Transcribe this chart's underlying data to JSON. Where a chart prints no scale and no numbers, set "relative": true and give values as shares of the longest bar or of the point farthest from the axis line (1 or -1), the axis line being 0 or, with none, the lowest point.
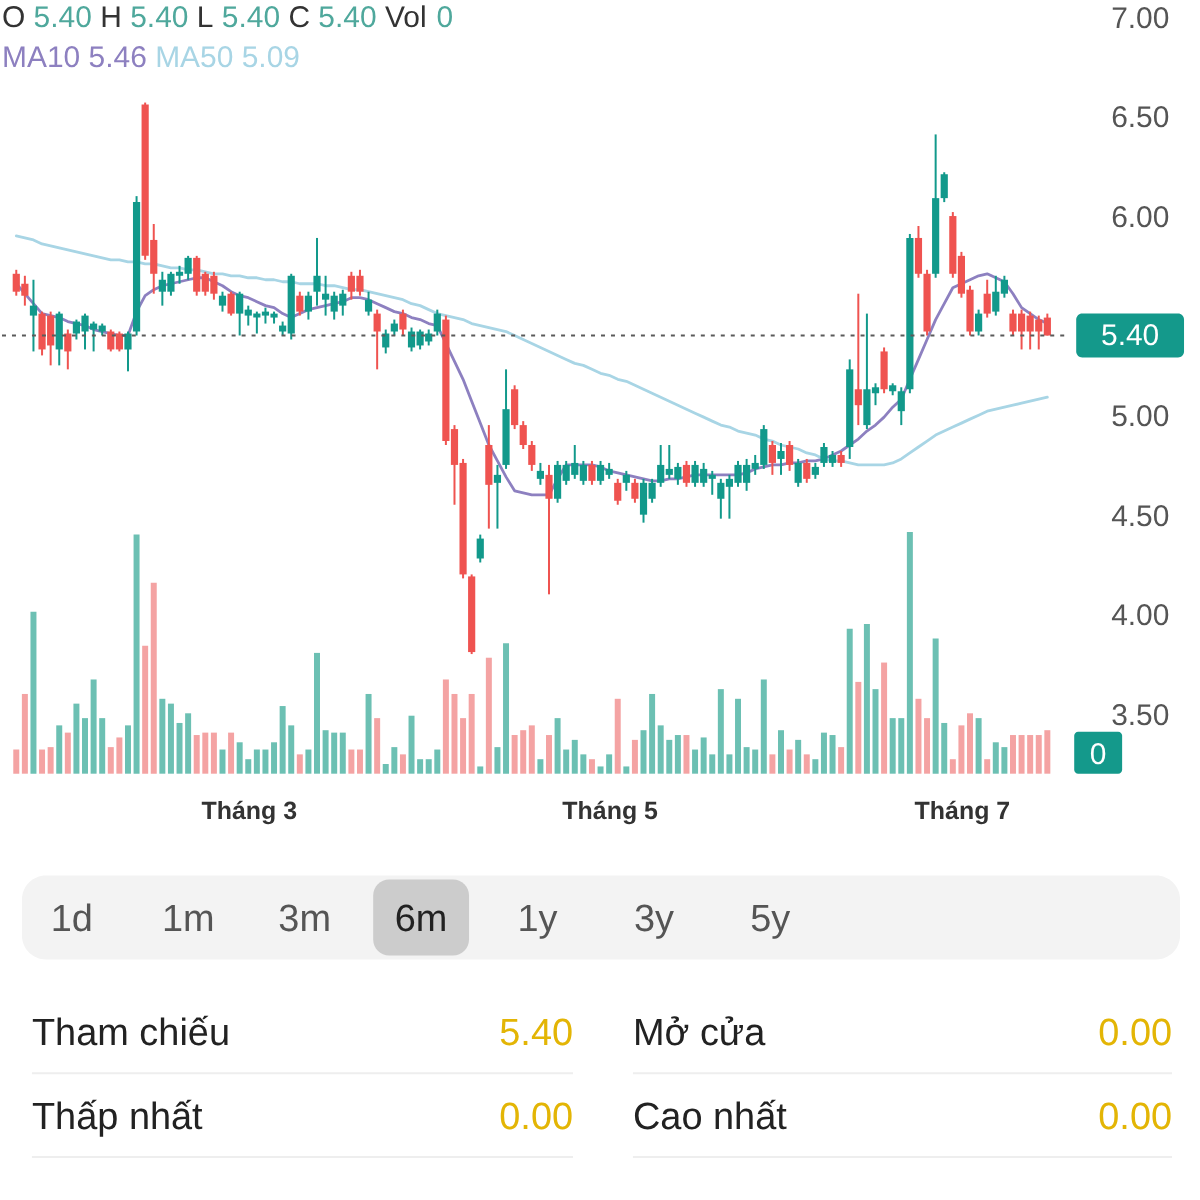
{
  "chart_data": [
    {
      "type": "candlestick",
      "tick_labels": "y",
      "categories": [
        null,
        null,
        null,
        null,
        null,
        null,
        null,
        null,
        null,
        null,
        null,
        null,
        null,
        null,
        null,
        null,
        null,
        null,
        null,
        null,
        null,
        null,
        null,
        null,
        null,
        null,
        null,
        null,
        null,
        null,
        null,
        null,
        null,
        null,
        null,
        null,
        null,
        null,
        null,
        null,
        null,
        null,
        null,
        null,
        null,
        null,
        null,
        null,
        null,
        null,
        null,
        null,
        null,
        null,
        null,
        null,
        null,
        null,
        null,
        null,
        null,
        null,
        null,
        null,
        null,
        null,
        null,
        null,
        null,
        null,
        null,
        null,
        null,
        null,
        null,
        null,
        null,
        null,
        null,
        null,
        null,
        null,
        null,
        null,
        null,
        null,
        null,
        null,
        null,
        null,
        null,
        null,
        null,
        null,
        null,
        null,
        null,
        null,
        null,
        null,
        null,
        null,
        null,
        null,
        null,
        null,
        null,
        null,
        null,
        null,
        null,
        null,
        null,
        null,
        null,
        null,
        null,
        null,
        null,
        null,
        null
      ],
      "ohlc": [
        [
          5.71,
          5.73,
          5.6,
          5.62
        ],
        [
          5.66,
          5.7,
          5.55,
          5.6
        ],
        [
          5.5,
          5.68,
          5.32,
          5.55
        ],
        [
          5.51,
          5.52,
          5.3,
          5.33
        ],
        [
          5.5,
          5.52,
          5.25,
          5.35
        ],
        [
          5.33,
          5.52,
          5.25,
          5.51
        ],
        [
          5.41,
          5.43,
          5.23,
          5.32
        ],
        [
          5.41,
          5.48,
          5.38,
          5.47
        ],
        [
          5.42,
          5.51,
          5.33,
          5.5
        ],
        [
          5.43,
          5.47,
          5.32,
          5.46
        ],
        [
          5.42,
          5.46,
          5.4,
          5.45
        ],
        [
          5.42,
          5.43,
          5.32,
          5.33
        ],
        [
          5.41,
          5.42,
          5.32,
          5.33
        ],
        [
          5.33,
          5.42,
          5.22,
          5.41
        ],
        [
          5.42,
          6.1,
          5.4,
          6.07
        ],
        [
          6.56,
          6.57,
          5.78,
          5.8
        ],
        [
          5.88,
          5.96,
          5.61,
          5.71
        ],
        [
          5.62,
          5.72,
          5.55,
          5.68
        ],
        [
          5.62,
          5.72,
          5.6,
          5.71
        ],
        [
          5.7,
          5.75,
          5.66,
          5.72
        ],
        [
          5.71,
          5.8,
          5.68,
          5.79
        ],
        [
          5.79,
          5.8,
          5.6,
          5.62
        ],
        [
          5.71,
          5.72,
          5.6,
          5.62
        ],
        [
          5.7,
          5.72,
          5.58,
          5.61
        ],
        [
          5.55,
          5.62,
          5.52,
          5.6
        ],
        [
          5.61,
          5.62,
          5.5,
          5.51
        ],
        [
          5.51,
          5.62,
          5.4,
          5.61
        ],
        [
          5.5,
          5.55,
          5.45,
          5.53
        ],
        [
          5.49,
          5.52,
          5.41,
          5.51
        ],
        [
          5.5,
          5.54,
          5.46,
          5.52
        ],
        [
          5.49,
          5.52,
          5.46,
          5.51
        ],
        [
          5.42,
          5.47,
          5.4,
          5.45
        ],
        [
          5.41,
          5.71,
          5.38,
          5.7
        ],
        [
          5.6,
          5.62,
          5.5,
          5.52
        ],
        [
          5.52,
          5.62,
          5.48,
          5.6
        ],
        [
          5.62,
          5.89,
          5.55,
          5.7
        ],
        [
          5.58,
          5.7,
          5.5,
          5.61
        ],
        [
          5.52,
          5.62,
          5.48,
          5.6
        ],
        [
          5.55,
          5.63,
          5.5,
          5.61
        ],
        [
          5.7,
          5.72,
          5.58,
          5.62
        ],
        [
          5.7,
          5.73,
          5.6,
          5.62
        ],
        [
          5.52,
          5.62,
          5.5,
          5.58
        ],
        [
          5.51,
          5.53,
          5.23,
          5.42
        ],
        [
          5.34,
          5.43,
          5.31,
          5.41
        ],
        [
          5.42,
          5.48,
          5.4,
          5.46
        ],
        [
          5.51,
          5.53,
          5.4,
          5.43
        ],
        [
          5.34,
          5.44,
          5.32,
          5.42
        ],
        [
          5.35,
          5.43,
          5.33,
          5.42
        ],
        [
          5.37,
          5.43,
          5.35,
          5.41
        ],
        [
          5.42,
          5.53,
          5.4,
          5.51
        ],
        [
          5.48,
          5.5,
          4.85,
          4.87
        ],
        [
          4.93,
          4.95,
          4.55,
          4.75
        ],
        [
          4.76,
          4.78,
          4.18,
          4.2
        ],
        [
          4.19,
          4.2,
          3.8,
          3.81
        ],
        [
          4.28,
          4.4,
          4.26,
          4.38
        ],
        [
          4.85,
          4.95,
          4.43,
          4.65
        ],
        [
          4.66,
          4.75,
          4.43,
          4.7
        ],
        [
          4.75,
          5.23,
          4.73,
          5.03
        ],
        [
          5.13,
          5.15,
          4.93,
          4.95
        ],
        [
          4.95,
          4.97,
          4.83,
          4.85
        ],
        [
          4.85,
          4.87,
          4.72,
          4.75
        ],
        [
          4.68,
          4.76,
          4.65,
          4.72
        ],
        [
          4.7,
          4.75,
          4.1,
          4.58
        ],
        [
          4.58,
          4.77,
          4.56,
          4.75
        ],
        [
          4.67,
          4.77,
          4.65,
          4.75
        ],
        [
          4.7,
          4.85,
          4.68,
          4.76
        ],
        [
          4.67,
          4.77,
          4.65,
          4.75
        ],
        [
          4.75,
          4.77,
          4.65,
          4.67
        ],
        [
          4.67,
          4.77,
          4.65,
          4.75
        ],
        [
          4.7,
          4.76,
          4.68,
          4.73
        ],
        [
          4.66,
          4.68,
          4.55,
          4.57
        ],
        [
          4.66,
          4.72,
          4.62,
          4.7
        ],
        [
          4.66,
          4.68,
          4.56,
          4.58
        ],
        [
          4.5,
          4.68,
          4.46,
          4.66
        ],
        [
          4.58,
          4.68,
          4.56,
          4.66
        ],
        [
          4.66,
          4.85,
          4.64,
          4.75
        ],
        [
          4.7,
          4.85,
          4.68,
          4.73
        ],
        [
          4.68,
          4.76,
          4.65,
          4.74
        ],
        [
          4.75,
          4.77,
          4.64,
          4.66
        ],
        [
          4.66,
          4.77,
          4.64,
          4.75
        ],
        [
          4.66,
          4.76,
          4.64,
          4.73
        ],
        [
          4.68,
          4.72,
          4.6,
          4.7
        ],
        [
          4.58,
          4.68,
          4.48,
          4.66
        ],
        [
          4.64,
          4.7,
          4.48,
          4.68
        ],
        [
          4.66,
          4.77,
          4.64,
          4.75
        ],
        [
          4.66,
          4.78,
          4.62,
          4.75
        ],
        [
          4.73,
          4.8,
          4.7,
          4.76
        ],
        [
          4.75,
          4.95,
          4.73,
          4.93
        ],
        [
          4.85,
          4.87,
          4.7,
          4.76
        ],
        [
          4.78,
          4.86,
          4.7,
          4.82
        ],
        [
          4.85,
          4.87,
          4.72,
          4.75
        ],
        [
          4.66,
          4.78,
          4.64,
          4.76
        ],
        [
          4.76,
          4.78,
          4.66,
          4.68
        ],
        [
          4.7,
          4.76,
          4.68,
          4.74
        ],
        [
          4.76,
          4.86,
          4.74,
          4.84
        ],
        [
          4.76,
          4.82,
          4.74,
          4.8
        ],
        [
          4.8,
          4.82,
          4.74,
          4.76
        ],
        [
          4.84,
          5.28,
          4.78,
          5.23
        ],
        [
          5.13,
          5.61,
          4.95,
          5.05
        ],
        [
          4.95,
          5.51,
          4.93,
          5.13
        ],
        [
          5.11,
          5.16,
          5.05,
          5.14
        ],
        [
          5.32,
          5.34,
          5.11,
          5.13
        ],
        [
          5.12,
          5.16,
          5.1,
          5.15
        ],
        [
          5.02,
          5.14,
          4.95,
          5.12
        ],
        [
          5.13,
          5.91,
          5.11,
          5.89
        ],
        [
          5.89,
          5.95,
          5.69,
          5.71
        ],
        [
          5.71,
          5.73,
          5.4,
          5.42
        ],
        [
          5.71,
          6.41,
          5.69,
          6.09
        ],
        [
          6.09,
          6.22,
          6.07,
          6.21
        ],
        [
          6.0,
          6.02,
          5.69,
          5.71
        ],
        [
          5.8,
          5.82,
          5.59,
          5.61
        ],
        [
          5.63,
          5.65,
          5.4,
          5.42
        ],
        [
          5.42,
          5.53,
          5.4,
          5.51
        ],
        [
          5.61,
          5.68,
          5.49,
          5.51
        ],
        [
          5.52,
          5.7,
          5.5,
          5.62
        ],
        [
          5.61,
          5.7,
          5.59,
          5.68
        ],
        [
          5.51,
          5.53,
          5.4,
          5.42
        ],
        [
          5.51,
          5.53,
          5.33,
          5.42
        ],
        [
          5.5,
          5.52,
          5.33,
          5.42
        ],
        [
          5.48,
          5.5,
          5.33,
          5.42
        ],
        [
          5.49,
          5.51,
          5.4,
          5.4
        ]
      ],
      "colors": [
        "#ef5350",
        "#ef5350",
        "#12998b",
        "#ef5350",
        "#ef5350",
        "#12998b",
        "#ef5350",
        "#12998b",
        "#12998b",
        "#12998b",
        "#12998b",
        "#ef5350",
        "#ef5350",
        "#12998b",
        "#12998b",
        "#ef5350",
        "#ef5350",
        "#12998b",
        "#12998b",
        "#12998b",
        "#12998b",
        "#ef5350",
        "#ef5350",
        "#ef5350",
        "#12998b",
        "#ef5350",
        "#12998b",
        "#12998b",
        "#12998b",
        "#12998b",
        "#12998b",
        "#12998b",
        "#12998b",
        "#ef5350",
        "#12998b",
        "#12998b",
        "#12998b",
        "#12998b",
        "#12998b",
        "#ef5350",
        "#ef5350",
        "#12998b",
        "#ef5350",
        "#12998b",
        "#12998b",
        "#ef5350",
        "#12998b",
        "#12998b",
        "#12998b",
        "#12998b",
        "#ef5350",
        "#ef5350",
        "#ef5350",
        "#ef5350",
        "#12998b",
        "#ef5350",
        "#12998b",
        "#12998b",
        "#ef5350",
        "#ef5350",
        "#ef5350",
        "#12998b",
        "#ef5350",
        "#12998b",
        "#12998b",
        "#12998b",
        "#12998b",
        "#ef5350",
        "#12998b",
        "#12998b",
        "#ef5350",
        "#12998b",
        "#ef5350",
        "#12998b",
        "#12998b",
        "#12998b",
        "#12998b",
        "#12998b",
        "#ef5350",
        "#12998b",
        "#12998b",
        "#12998b",
        "#12998b",
        "#12998b",
        "#12998b",
        "#12998b",
        "#12998b",
        "#12998b",
        "#ef5350",
        "#12998b",
        "#ef5350",
        "#12998b",
        "#ef5350",
        "#12998b",
        "#12998b",
        "#12998b",
        "#ef5350",
        "#12998b",
        "#ef5350",
        "#12998b",
        "#12998b",
        "#ef5350",
        "#12998b",
        "#12998b",
        "#12998b",
        "#ef5350",
        "#ef5350",
        "#12998b",
        "#12998b",
        "#ef5350",
        "#ef5350",
        "#ef5350",
        "#12998b",
        "#ef5350",
        "#12998b",
        "#12998b",
        "#ef5350",
        "#ef5350",
        "#ef5350",
        "#ef5350",
        "#ef5350"
      ],
      "series": [
        {
          "name": "MA10",
          "type": "line",
          "color": "#8d80c0",
          "values": [
            5.66,
            5.61,
            5.56,
            5.51,
            5.5,
            5.49,
            5.47,
            5.46,
            5.45,
            5.43,
            5.42,
            5.41,
            5.4,
            5.4,
            5.52,
            5.6,
            5.63,
            5.65,
            5.66,
            5.67,
            5.68,
            5.69,
            5.69,
            5.67,
            5.65,
            5.62,
            5.6,
            5.59,
            5.57,
            5.55,
            5.54,
            5.51,
            5.49,
            5.51,
            5.53,
            5.54,
            5.55,
            5.56,
            5.57,
            5.59,
            5.59,
            5.58,
            5.56,
            5.54,
            5.52,
            5.51,
            5.49,
            5.48,
            5.46,
            5.45,
            5.36,
            5.27,
            5.18,
            5.07,
            4.96,
            4.85,
            4.77,
            4.69,
            4.62,
            4.61,
            4.6,
            4.6,
            4.6,
            4.68,
            4.75,
            4.75,
            4.75,
            4.75,
            4.74,
            4.72,
            4.71,
            4.7,
            4.69,
            4.68,
            4.67,
            4.67,
            4.68,
            4.68,
            4.69,
            4.7,
            4.7,
            4.7,
            4.7,
            4.7,
            4.7,
            4.71,
            4.73,
            4.74,
            4.75,
            4.75,
            4.76,
            4.76,
            4.77,
            4.77,
            4.78,
            4.8,
            4.82,
            4.85,
            4.88,
            4.92,
            4.95,
            4.99,
            5.04,
            5.08,
            5.18,
            5.28,
            5.38,
            5.48,
            5.56,
            5.64,
            5.66,
            5.68,
            5.7,
            5.71,
            5.69,
            5.67,
            5.61,
            5.54,
            5.51,
            5.48,
            5.46
          ]
        },
        {
          "name": "MA50",
          "type": "line",
          "color": "#a8d5e5",
          "values": [
            5.9,
            5.89,
            5.88,
            5.86,
            5.85,
            5.84,
            5.83,
            5.82,
            5.81,
            5.8,
            5.79,
            5.78,
            5.78,
            5.77,
            5.77,
            5.76,
            5.76,
            5.75,
            5.74,
            5.74,
            5.73,
            5.73,
            5.72,
            5.71,
            5.71,
            5.7,
            5.7,
            5.69,
            5.69,
            5.68,
            5.68,
            5.67,
            5.67,
            5.66,
            5.66,
            5.66,
            5.65,
            5.65,
            5.64,
            5.63,
            5.63,
            5.62,
            5.61,
            5.6,
            5.59,
            5.58,
            5.56,
            5.55,
            5.53,
            5.51,
            5.5,
            5.49,
            5.48,
            5.46,
            5.45,
            5.44,
            5.43,
            5.42,
            5.4,
            5.38,
            5.36,
            5.34,
            5.32,
            5.3,
            5.28,
            5.26,
            5.25,
            5.23,
            5.21,
            5.2,
            5.18,
            5.17,
            5.15,
            5.13,
            5.11,
            5.09,
            5.07,
            5.05,
            5.03,
            5.01,
            4.99,
            4.97,
            4.95,
            4.94,
            4.92,
            4.91,
            4.9,
            4.88,
            4.87,
            4.85,
            4.84,
            4.83,
            4.81,
            4.8,
            4.78,
            4.77,
            4.77,
            4.76,
            4.75,
            4.75,
            4.75,
            4.75,
            4.76,
            4.78,
            4.81,
            4.84,
            4.87,
            4.9,
            4.92,
            4.94,
            4.96,
            4.98,
            5.0,
            5.02,
            5.03,
            5.04,
            5.05,
            5.06,
            5.07,
            5.08,
            5.09
          ]
        }
      ],
      "ylim": [
        3.5,
        7.0
      ],
      "yticks": [
        {
          "value": 7,
          "label": "7.00"
        },
        {
          "value": 6.5,
          "label": "6.50"
        },
        {
          "value": 6,
          "label": "6.00"
        },
        {
          "value": 5,
          "label": "5.00"
        },
        {
          "value": 4.5,
          "label": "4.50"
        },
        {
          "value": 4,
          "label": "4.00"
        },
        {
          "value": 3.5,
          "label": "3.50"
        }
      ],
      "ref_lines": [
        {
          "axis": "y",
          "value": 5.4,
          "label": "5.40",
          "color": "#5a5a5a",
          "line_style": "dotted"
        }
      ],
      "annotations": [
        "O 5.40 H 5.40 L 5.40 C 5.40 Vol 0",
        "5.46",
        "5.09"
      ],
      "legend": "top left"
    },
    {
      "type": "bar",
      "relative": true,
      "categories": [
        null,
        null,
        null,
        null,
        null,
        null,
        null,
        null,
        null,
        null,
        null,
        null,
        null,
        null,
        null,
        null,
        null,
        null,
        null,
        null,
        null,
        null,
        null,
        null,
        null,
        null,
        null,
        "Tháng 3",
        null,
        null,
        null,
        null,
        null,
        null,
        null,
        null,
        null,
        null,
        null,
        null,
        null,
        null,
        null,
        null,
        null,
        null,
        null,
        null,
        null,
        null,
        null,
        null,
        null,
        null,
        null,
        null,
        null,
        null,
        null,
        null,
        null,
        null,
        null,
        null,
        null,
        null,
        null,
        null,
        null,
        "Tháng 5",
        null,
        null,
        null,
        null,
        null,
        null,
        null,
        null,
        null,
        null,
        null,
        null,
        null,
        null,
        null,
        null,
        null,
        null,
        null,
        null,
        null,
        null,
        null,
        null,
        null,
        null,
        null,
        null,
        null,
        null,
        null,
        null,
        null,
        null,
        null,
        null,
        null,
        null,
        null,
        null,
        "Tháng 7",
        null,
        null,
        null,
        null,
        null,
        null,
        null,
        null,
        null,
        null
      ],
      "values": [
        0.1,
        0.33,
        0.67,
        0.1,
        0.11,
        0.2,
        0.17,
        0.29,
        0.23,
        0.39,
        0.23,
        0.11,
        0.15,
        0.2,
        0.99,
        0.53,
        0.79,
        0.31,
        0.29,
        0.21,
        0.25,
        0.16,
        0.17,
        0.17,
        0.1,
        0.17,
        0.13,
        0.06,
        0.1,
        0.1,
        0.13,
        0.28,
        0.2,
        0.08,
        0.1,
        0.5,
        0.18,
        0.17,
        0.17,
        0.1,
        0.1,
        0.33,
        0.23,
        0.04,
        0.11,
        0.08,
        0.24,
        0.06,
        0.06,
        0.1,
        0.39,
        0.33,
        0.23,
        0.33,
        0.03,
        0.48,
        0.11,
        0.54,
        0.16,
        0.18,
        0.2,
        0.06,
        0.16,
        0.23,
        0.1,
        0.14,
        0.08,
        0.06,
        0.03,
        0.08,
        0.31,
        0.03,
        0.14,
        0.18,
        0.33,
        0.2,
        0.14,
        0.16,
        0.16,
        0.1,
        0.15,
        0.08,
        0.35,
        0.08,
        0.31,
        0.11,
        0.1,
        0.39,
        0.08,
        0.18,
        0.1,
        0.14,
        0.08,
        0.06,
        0.17,
        0.16,
        0.11,
        0.6,
        0.38,
        0.62,
        0.35,
        0.46,
        0.23,
        0.23,
        1,
        0.31,
        0.23,
        0.56,
        0.21,
        0.06,
        0.2,
        0.25,
        0.23,
        0.06,
        0.13,
        0.11,
        0.16,
        0.16,
        0.16,
        0.16,
        0.18
      ],
      "colors": [
        "#f4a3a3",
        "#f4a3a3",
        "#6cc0b3",
        "#f4a3a3",
        "#f4a3a3",
        "#6cc0b3",
        "#f4a3a3",
        "#6cc0b3",
        "#6cc0b3",
        "#6cc0b3",
        "#6cc0b3",
        "#f4a3a3",
        "#f4a3a3",
        "#6cc0b3",
        "#6cc0b3",
        "#f4a3a3",
        "#f4a3a3",
        "#6cc0b3",
        "#6cc0b3",
        "#6cc0b3",
        "#6cc0b3",
        "#f4a3a3",
        "#f4a3a3",
        "#f4a3a3",
        "#6cc0b3",
        "#f4a3a3",
        "#6cc0b3",
        "#6cc0b3",
        "#6cc0b3",
        "#6cc0b3",
        "#6cc0b3",
        "#6cc0b3",
        "#6cc0b3",
        "#f4a3a3",
        "#6cc0b3",
        "#6cc0b3",
        "#6cc0b3",
        "#6cc0b3",
        "#6cc0b3",
        "#f4a3a3",
        "#f4a3a3",
        "#6cc0b3",
        "#f4a3a3",
        "#6cc0b3",
        "#6cc0b3",
        "#f4a3a3",
        "#6cc0b3",
        "#6cc0b3",
        "#6cc0b3",
        "#6cc0b3",
        "#f4a3a3",
        "#f4a3a3",
        "#f4a3a3",
        "#f4a3a3",
        "#6cc0b3",
        "#f4a3a3",
        "#6cc0b3",
        "#6cc0b3",
        "#f4a3a3",
        "#f4a3a3",
        "#f4a3a3",
        "#6cc0b3",
        "#f4a3a3",
        "#6cc0b3",
        "#6cc0b3",
        "#6cc0b3",
        "#6cc0b3",
        "#f4a3a3",
        "#6cc0b3",
        "#6cc0b3",
        "#f4a3a3",
        "#6cc0b3",
        "#f4a3a3",
        "#6cc0b3",
        "#6cc0b3",
        "#6cc0b3",
        "#6cc0b3",
        "#6cc0b3",
        "#f4a3a3",
        "#6cc0b3",
        "#6cc0b3",
        "#6cc0b3",
        "#6cc0b3",
        "#6cc0b3",
        "#6cc0b3",
        "#6cc0b3",
        "#6cc0b3",
        "#6cc0b3",
        "#f4a3a3",
        "#6cc0b3",
        "#f4a3a3",
        "#6cc0b3",
        "#f4a3a3",
        "#6cc0b3",
        "#6cc0b3",
        "#6cc0b3",
        "#f4a3a3",
        "#6cc0b3",
        "#f4a3a3",
        "#6cc0b3",
        "#6cc0b3",
        "#f4a3a3",
        "#6cc0b3",
        "#6cc0b3",
        "#6cc0b3",
        "#f4a3a3",
        "#f4a3a3",
        "#6cc0b3",
        "#6cc0b3",
        "#f4a3a3",
        "#f4a3a3",
        "#f4a3a3",
        "#6cc0b3",
        "#f4a3a3",
        "#6cc0b3",
        "#6cc0b3",
        "#f4a3a3",
        "#f4a3a3",
        "#f4a3a3",
        "#f4a3a3",
        "#f4a3a3"
      ],
      "annotations": [
        "0"
      ]
    },
    {
      "type": "other",
      "categories": [
        "1d",
        "1m",
        "3m",
        "6m",
        "1y",
        "3y",
        "5y"
      ],
      "annotations": [
        "Tham chiếu",
        "5.40",
        "Mở cửa",
        "0.00",
        "Thấp nhất",
        "0.00",
        "Cao nhất",
        "0.00"
      ]
    }
  ]
}
